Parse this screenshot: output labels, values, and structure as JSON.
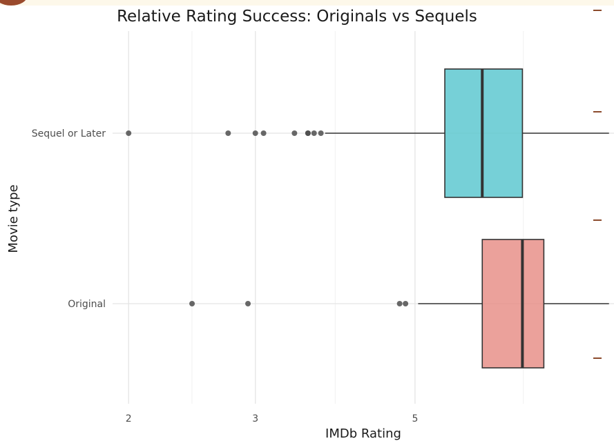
{
  "chart_data": {
    "type": "boxplot",
    "orientation": "horizontal",
    "title": "Relative Rating Success: Originals vs Sequels",
    "xlabel": "IMDb Rating",
    "ylabel": "Movie type",
    "x_scale": "log",
    "x_ticks": [
      2,
      3,
      5
    ],
    "x_tick_labels": [
      "2",
      "3",
      "5"
    ],
    "xlim": [
      1.9,
      9.45
    ],
    "categories": [
      "Sequel or Later",
      "Original"
    ],
    "series": [
      {
        "category": "Sequel or Later",
        "color": "#5ec8d0",
        "whisker_low": 3.75,
        "q1": 5.5,
        "median": 6.2,
        "q3": 7.05,
        "whisker_high": 9.3,
        "outliers": [
          2.0,
          2.75,
          3.0,
          3.08,
          3.4,
          3.55,
          3.55,
          3.62,
          3.7
        ]
      },
      {
        "category": "Original",
        "color": "#e8908a",
        "whisker_low": 5.05,
        "q1": 6.2,
        "median": 7.05,
        "q3": 7.55,
        "whisker_high": 9.3,
        "outliers": [
          2.45,
          2.93,
          4.76,
          4.85
        ]
      }
    ],
    "grid": true,
    "legend": "none"
  }
}
